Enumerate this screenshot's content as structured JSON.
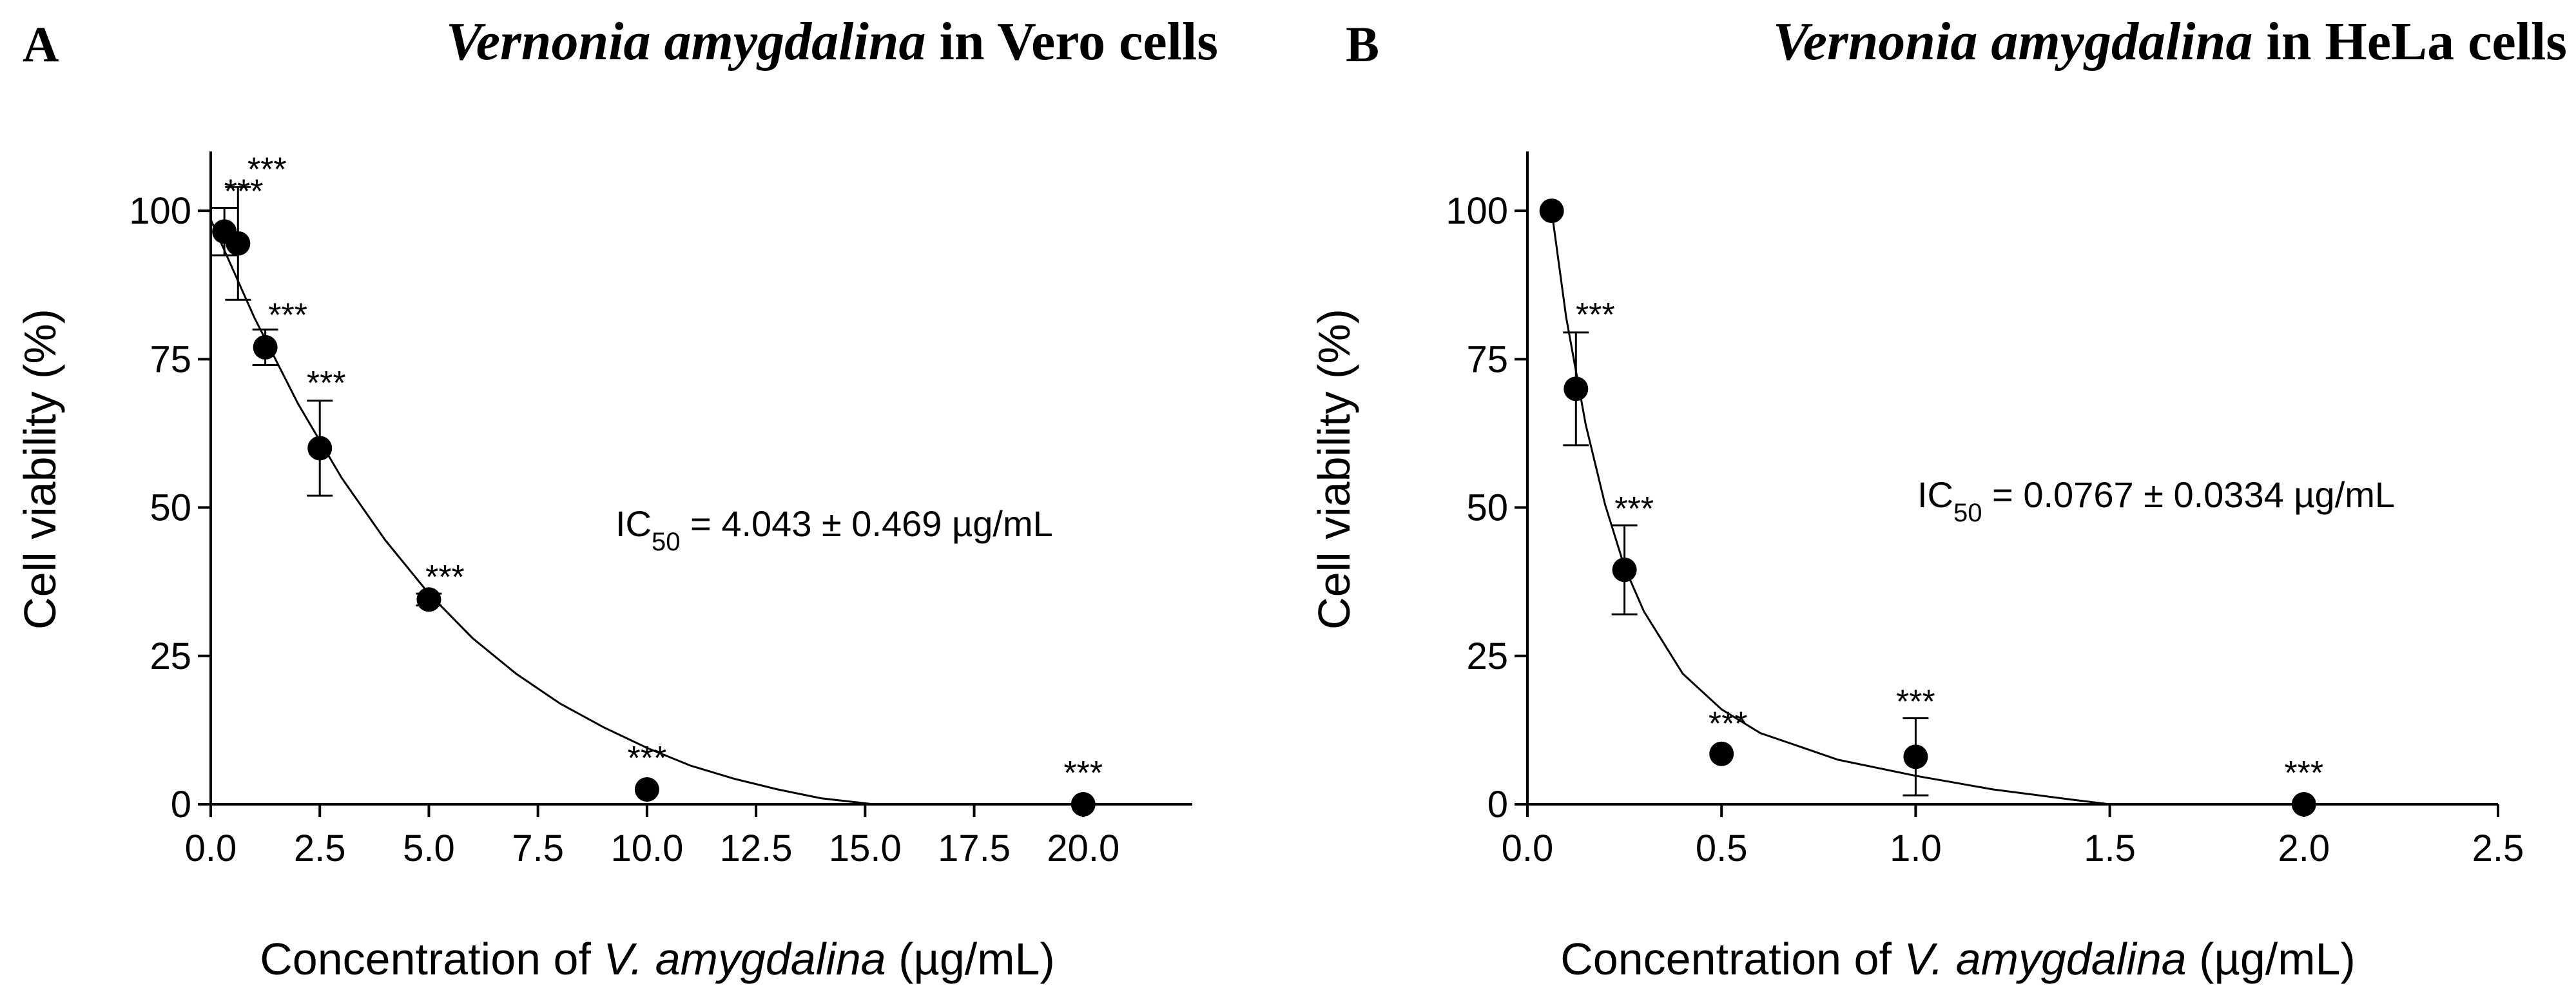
{
  "chart_data": [
    {
      "panel": "A",
      "type": "scatter",
      "title_species": "Vernonia amygdalina",
      "title_rest": " in Vero cells",
      "xlabel_pre": "Concentration of ",
      "xlabel_italic": "V. amygdalina",
      "xlabel_post": " (µg/mL)",
      "ylabel": "Cell viability (%)",
      "xlim": [
        0,
        22.5
      ],
      "ylim": [
        0,
        110
      ],
      "xticks": [
        0,
        2.5,
        5,
        7.5,
        10,
        12.5,
        15,
        17.5,
        20
      ],
      "xtick_labels": [
        "0.0",
        "2.5",
        "5.0",
        "7.5",
        "10.0",
        "12.5",
        "15.0",
        "17.5",
        "20.0"
      ],
      "yticks": [
        0,
        25,
        50,
        75,
        100
      ],
      "ytick_labels": [
        "0",
        "25",
        "50",
        "75",
        "100"
      ],
      "points": [
        {
          "x": 0.3125,
          "y": 96.5,
          "err": 4,
          "sig": "***"
        },
        {
          "x": 0.625,
          "y": 94.5,
          "err": 9.5,
          "sig": "***"
        },
        {
          "x": 1.25,
          "y": 77,
          "err": 3,
          "sig": "***"
        },
        {
          "x": 2.5,
          "y": 60,
          "err": 8,
          "sig": "***"
        },
        {
          "x": 5,
          "y": 34.5,
          "err": 1,
          "sig": "***"
        },
        {
          "x": 10,
          "y": 2.5,
          "err": 0,
          "sig": "***"
        },
        {
          "x": 20,
          "y": 0,
          "err": 0,
          "sig": "***"
        }
      ],
      "fit_curve": [
        [
          0,
          98.5
        ],
        [
          1,
          82
        ],
        [
          2,
          67.5
        ],
        [
          3,
          55
        ],
        [
          4,
          44.5
        ],
        [
          5,
          35.5
        ],
        [
          6,
          28
        ],
        [
          7,
          22
        ],
        [
          8,
          17
        ],
        [
          9,
          13
        ],
        [
          10,
          9.5
        ],
        [
          11,
          6.5
        ],
        [
          12,
          4.3
        ],
        [
          13,
          2.5
        ],
        [
          14,
          1
        ],
        [
          15.2,
          0
        ]
      ],
      "annotation": {
        "prefix": "IC",
        "subscript": "50",
        "value": " = 4.043 ± 0.469 µg/mL"
      }
    },
    {
      "panel": "B",
      "type": "scatter",
      "title_species": "Vernonia amygdalina",
      "title_rest": " in HeLa cells",
      "xlabel_pre": "Concentration of ",
      "xlabel_italic": "V. amygdalina",
      "xlabel_post": " (µg/mL)",
      "ylabel": "Cell viability (%)",
      "xlim": [
        0,
        2.5
      ],
      "ylim": [
        0,
        110
      ],
      "xticks": [
        0,
        0.5,
        1,
        1.5,
        2,
        2.5
      ],
      "xtick_labels": [
        "0.0",
        "0.5",
        "1.0",
        "1.5",
        "2.0",
        "2.5"
      ],
      "yticks": [
        0,
        25,
        50,
        75,
        100
      ],
      "ytick_labels": [
        "0",
        "25",
        "50",
        "75",
        "100"
      ],
      "points": [
        {
          "x": 0.0625,
          "y": 100,
          "err": 0,
          "sig": ""
        },
        {
          "x": 0.125,
          "y": 70,
          "err": 9.5,
          "sig": "***"
        },
        {
          "x": 0.25,
          "y": 39.5,
          "err": 7.5,
          "sig": "***"
        },
        {
          "x": 0.5,
          "y": 8.5,
          "err": 0,
          "sig": "***"
        },
        {
          "x": 1,
          "y": 8,
          "err": 6.5,
          "sig": "***"
        },
        {
          "x": 2,
          "y": 0,
          "err": 0,
          "sig": "***"
        }
      ],
      "fit_curve": [
        [
          0.0625,
          100
        ],
        [
          0.1,
          82
        ],
        [
          0.15,
          64
        ],
        [
          0.2,
          50.5
        ],
        [
          0.25,
          40
        ],
        [
          0.3,
          32.5
        ],
        [
          0.4,
          22
        ],
        [
          0.5,
          16
        ],
        [
          0.6,
          12
        ],
        [
          0.8,
          7.5
        ],
        [
          1,
          4.8
        ],
        [
          1.2,
          2.5
        ],
        [
          1.4,
          0.8
        ],
        [
          1.5,
          0
        ]
      ],
      "annotation": {
        "prefix": "IC",
        "subscript": "50",
        "value": " = 0.0767 ± 0.0334 µg/mL"
      }
    }
  ]
}
